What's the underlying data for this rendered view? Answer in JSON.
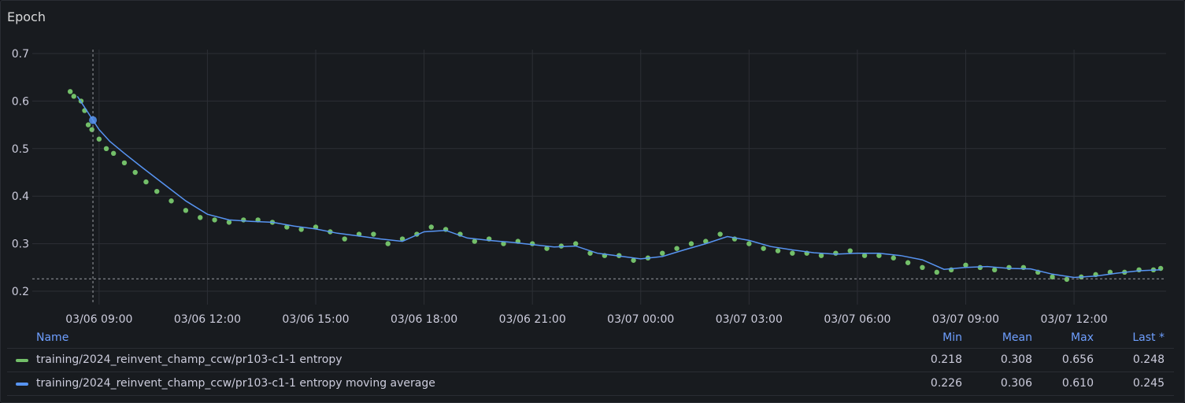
{
  "panel": {
    "title": "Epoch"
  },
  "colors": {
    "entropy": "#73bf69",
    "moving_average": "#5794f2",
    "grid": "#2c2f35",
    "background": "#181b1f"
  },
  "legend": {
    "headers": {
      "name": "Name",
      "min": "Min",
      "mean": "Mean",
      "max": "Max",
      "last": "Last *"
    },
    "rows": [
      {
        "name": "training/2024_reinvent_champ_ccw/pr103-c1-1 entropy",
        "min": "0.218",
        "mean": "0.308",
        "max": "0.656",
        "last": "0.248",
        "color": "#73bf69"
      },
      {
        "name": "training/2024_reinvent_champ_ccw/pr103-c1-1 entropy moving average",
        "min": "0.226",
        "mean": "0.306",
        "max": "0.610",
        "last": "0.245",
        "color": "#5794f2"
      }
    ]
  },
  "chart_data": {
    "type": "scatter",
    "title": "Epoch",
    "xlabel": "",
    "ylabel": "",
    "x_ticks": [
      "03/06 09:00",
      "03/06 12:00",
      "03/06 15:00",
      "03/06 18:00",
      "03/06 21:00",
      "03/07 00:00",
      "03/07 03:00",
      "03/07 06:00",
      "03/07 09:00",
      "03/07 12:00"
    ],
    "y_ticks": [
      "0.2",
      "0.3",
      "0.4",
      "0.5",
      "0.6",
      "0.7"
    ],
    "ylim": [
      0.2,
      0.7
    ],
    "xlim_hours": [
      -1.85,
      29.55
    ],
    "grid": true,
    "legend_placement": "bottom",
    "crosshair": {
      "x_hours": -0.17,
      "y": 0.226
    },
    "series": [
      {
        "name": "training/2024_reinvent_champ_ccw/pr103-c1-1 entropy",
        "style": "points",
        "color": "#73bf69",
        "x_hours": [
          -0.8,
          -0.7,
          -0.5,
          -0.4,
          -0.3,
          -0.2,
          0.0,
          0.2,
          0.4,
          0.7,
          1.0,
          1.3,
          1.6,
          2.0,
          2.4,
          2.8,
          3.2,
          3.6,
          4.0,
          4.4,
          4.8,
          5.2,
          5.6,
          6.0,
          6.4,
          6.8,
          7.2,
          7.6,
          8.0,
          8.4,
          8.8,
          9.2,
          9.6,
          10.0,
          10.4,
          10.8,
          11.2,
          11.6,
          12.0,
          12.4,
          12.8,
          13.2,
          13.6,
          14.0,
          14.4,
          14.8,
          15.2,
          15.6,
          16.0,
          16.4,
          16.8,
          17.2,
          17.6,
          18.0,
          18.4,
          18.8,
          19.2,
          19.6,
          20.0,
          20.4,
          20.8,
          21.2,
          21.6,
          22.0,
          22.4,
          22.8,
          23.2,
          23.6,
          24.0,
          24.4,
          24.8,
          25.2,
          25.6,
          26.0,
          26.4,
          26.8,
          27.2,
          27.6,
          28.0,
          28.4,
          28.8,
          29.2,
          29.4
        ],
        "values": [
          0.62,
          0.61,
          0.6,
          0.58,
          0.55,
          0.54,
          0.52,
          0.5,
          0.49,
          0.47,
          0.45,
          0.43,
          0.41,
          0.39,
          0.37,
          0.355,
          0.35,
          0.345,
          0.35,
          0.35,
          0.345,
          0.335,
          0.33,
          0.335,
          0.325,
          0.31,
          0.32,
          0.32,
          0.3,
          0.31,
          0.32,
          0.335,
          0.33,
          0.32,
          0.305,
          0.31,
          0.3,
          0.305,
          0.3,
          0.29,
          0.295,
          0.3,
          0.28,
          0.275,
          0.275,
          0.265,
          0.27,
          0.28,
          0.29,
          0.3,
          0.305,
          0.32,
          0.31,
          0.3,
          0.29,
          0.285,
          0.28,
          0.28,
          0.275,
          0.28,
          0.285,
          0.275,
          0.275,
          0.27,
          0.26,
          0.25,
          0.24,
          0.245,
          0.255,
          0.25,
          0.245,
          0.25,
          0.25,
          0.24,
          0.23,
          0.225,
          0.23,
          0.235,
          0.24,
          0.24,
          0.245,
          0.245,
          0.248
        ]
      },
      {
        "name": "training/2024_reinvent_champ_ccw/pr103-c1-1 entropy moving average",
        "style": "line",
        "color": "#5794f2",
        "x_hours": [
          -0.6,
          -0.3,
          0.0,
          0.3,
          0.7,
          1.2,
          1.8,
          2.4,
          3.0,
          3.6,
          4.2,
          4.8,
          5.4,
          6.0,
          6.6,
          7.2,
          7.8,
          8.4,
          9.0,
          9.6,
          10.2,
          10.8,
          11.4,
          12.0,
          12.6,
          13.2,
          13.8,
          14.4,
          15.0,
          15.6,
          16.2,
          16.8,
          17.4,
          18.0,
          18.6,
          19.2,
          19.8,
          20.4,
          21.0,
          21.6,
          22.2,
          22.8,
          23.4,
          24.0,
          24.6,
          25.2,
          25.8,
          26.4,
          27.0,
          27.6,
          28.2,
          28.8,
          29.4
        ],
        "values": [
          0.61,
          0.575,
          0.54,
          0.515,
          0.49,
          0.46,
          0.425,
          0.39,
          0.362,
          0.35,
          0.347,
          0.345,
          0.337,
          0.331,
          0.322,
          0.316,
          0.31,
          0.305,
          0.325,
          0.328,
          0.312,
          0.307,
          0.303,
          0.298,
          0.293,
          0.295,
          0.28,
          0.274,
          0.268,
          0.273,
          0.287,
          0.3,
          0.315,
          0.307,
          0.294,
          0.287,
          0.281,
          0.278,
          0.28,
          0.28,
          0.275,
          0.266,
          0.246,
          0.25,
          0.252,
          0.248,
          0.247,
          0.236,
          0.229,
          0.232,
          0.238,
          0.243,
          0.245
        ]
      }
    ]
  }
}
